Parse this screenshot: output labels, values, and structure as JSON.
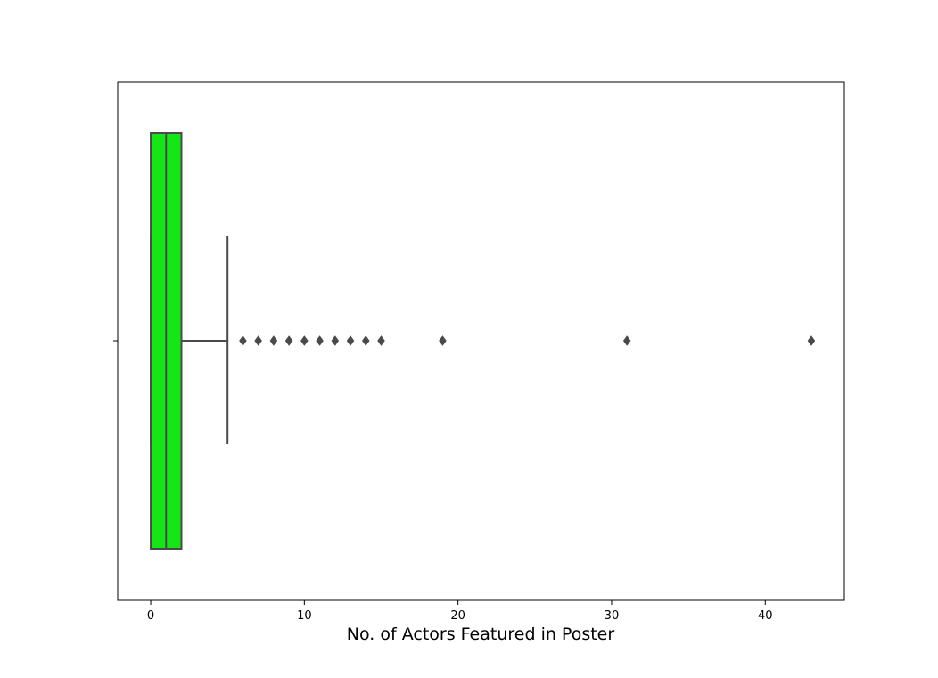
{
  "chart_data": {
    "type": "boxplot",
    "orientation": "horizontal",
    "title": "",
    "xlabel": "No. of Actors Featured in Poster",
    "ylabel": "",
    "xlim": [
      -2.15,
      45.15
    ],
    "xticks": [
      0,
      10,
      20,
      30,
      40
    ],
    "xtick_labels": [
      "0",
      "10",
      "20",
      "30",
      "40"
    ],
    "grid": false,
    "legend": "none",
    "box": {
      "q1": 0,
      "median": 1,
      "q3": 2,
      "whisker_low": 0,
      "whisker_high": 5,
      "color": "#15e615",
      "edge_color": "#4a4a4a"
    },
    "outliers": [
      6,
      7,
      8,
      9,
      10,
      11,
      12,
      13,
      14,
      15,
      19,
      31,
      43
    ],
    "colors": {
      "box_fill": "#15e615",
      "lines": "#4a4a4a",
      "outlier": "#4a4a4a"
    }
  }
}
